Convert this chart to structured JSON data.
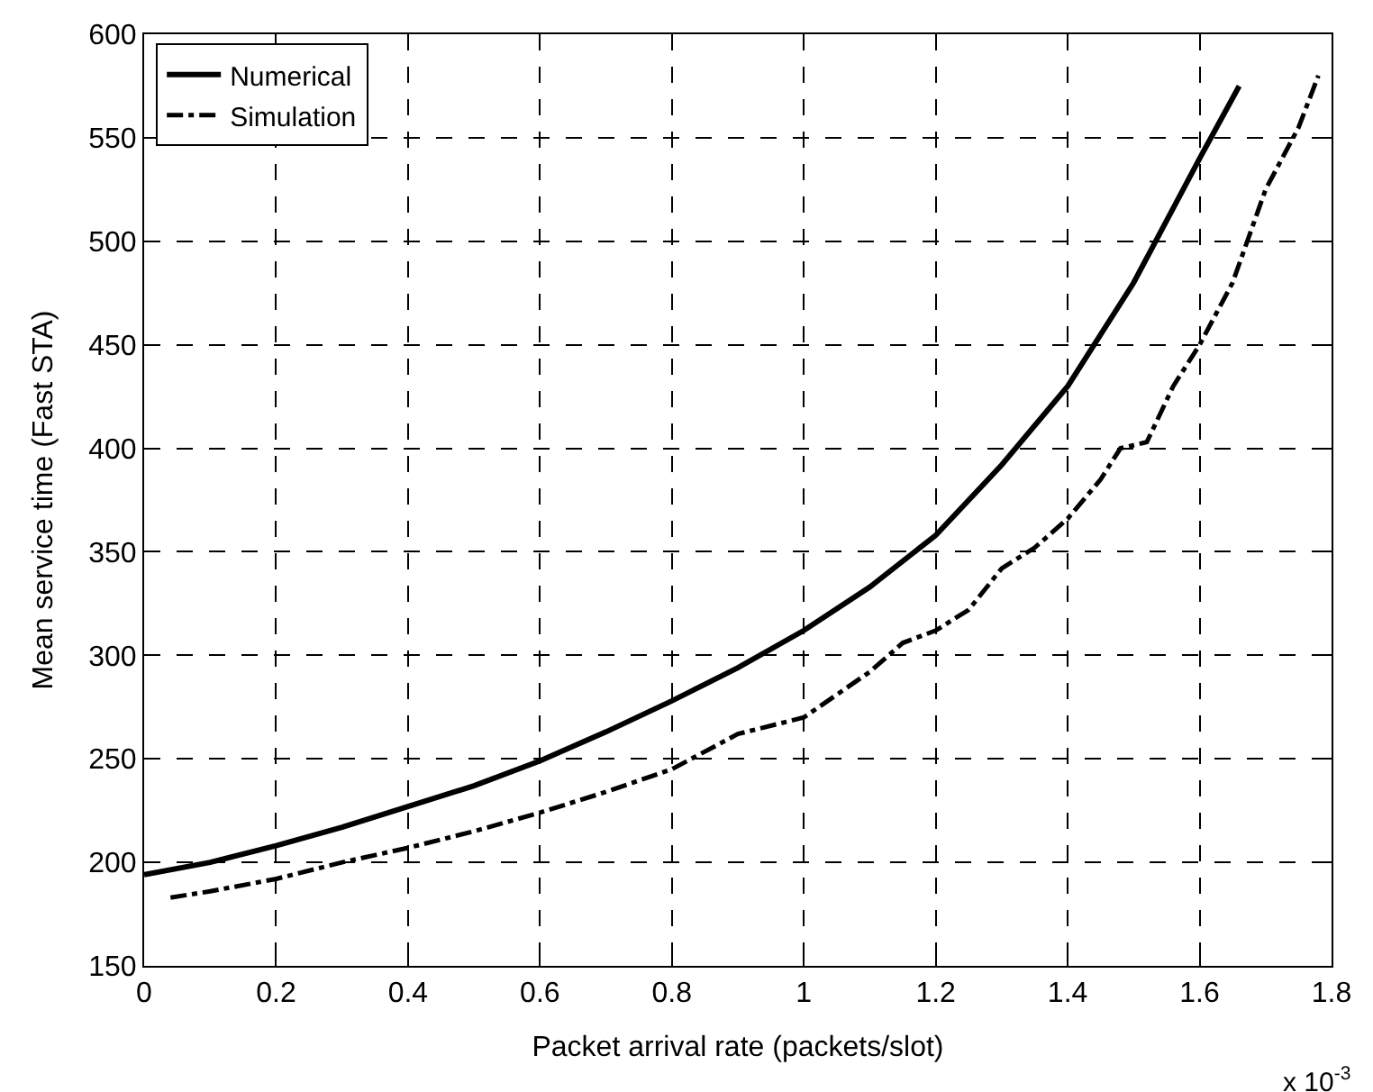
{
  "chart_data": {
    "type": "line",
    "xlabel": "Packet arrival rate (packets/slot)",
    "ylabel": "Mean service time (Fast STA)",
    "annotations": [
      "x 10$^{-3}$"
    ],
    "xlim": [
      0,
      1.8
    ],
    "xticks": [
      0,
      0.2,
      0.4,
      0.6,
      0.8,
      1,
      1.2,
      1.4,
      1.6,
      1.8
    ],
    "ylim": [
      150,
      600
    ],
    "yticks": [
      150,
      200,
      250,
      300,
      350,
      400,
      450,
      500,
      550,
      600
    ],
    "grid": true,
    "legend": "top left",
    "marker": "none",
    "series": [
      {
        "name": "Numerical",
        "color": "#000000",
        "line_style": "solid",
        "x": [
          0,
          0.1,
          0.2,
          0.3,
          0.4,
          0.5,
          0.6,
          0.7,
          0.8,
          0.9,
          1.0,
          1.1,
          1.2,
          1.3,
          1.4,
          1.5,
          1.6,
          1.66
        ],
        "values": [
          194,
          200,
          208,
          217,
          227,
          237,
          249,
          263,
          278,
          294,
          312,
          333,
          358,
          392,
          430,
          480,
          540,
          575
        ]
      },
      {
        "name": "Simulation",
        "color": "#000000",
        "line_style": "dashdot",
        "x": [
          0.04,
          0.1,
          0.2,
          0.3,
          0.4,
          0.5,
          0.6,
          0.7,
          0.8,
          0.9,
          1.0,
          1.1,
          1.15,
          1.2,
          1.25,
          1.3,
          1.35,
          1.4,
          1.45,
          1.48,
          1.52,
          1.56,
          1.6,
          1.65,
          1.7,
          1.75,
          1.78
        ],
        "values": [
          183,
          186,
          192,
          200,
          207,
          215,
          224,
          234,
          245,
          262,
          270,
          292,
          306,
          312,
          322,
          342,
          352,
          366,
          385,
          400,
          403,
          430,
          450,
          480,
          525,
          555,
          580
        ]
      }
    ]
  }
}
